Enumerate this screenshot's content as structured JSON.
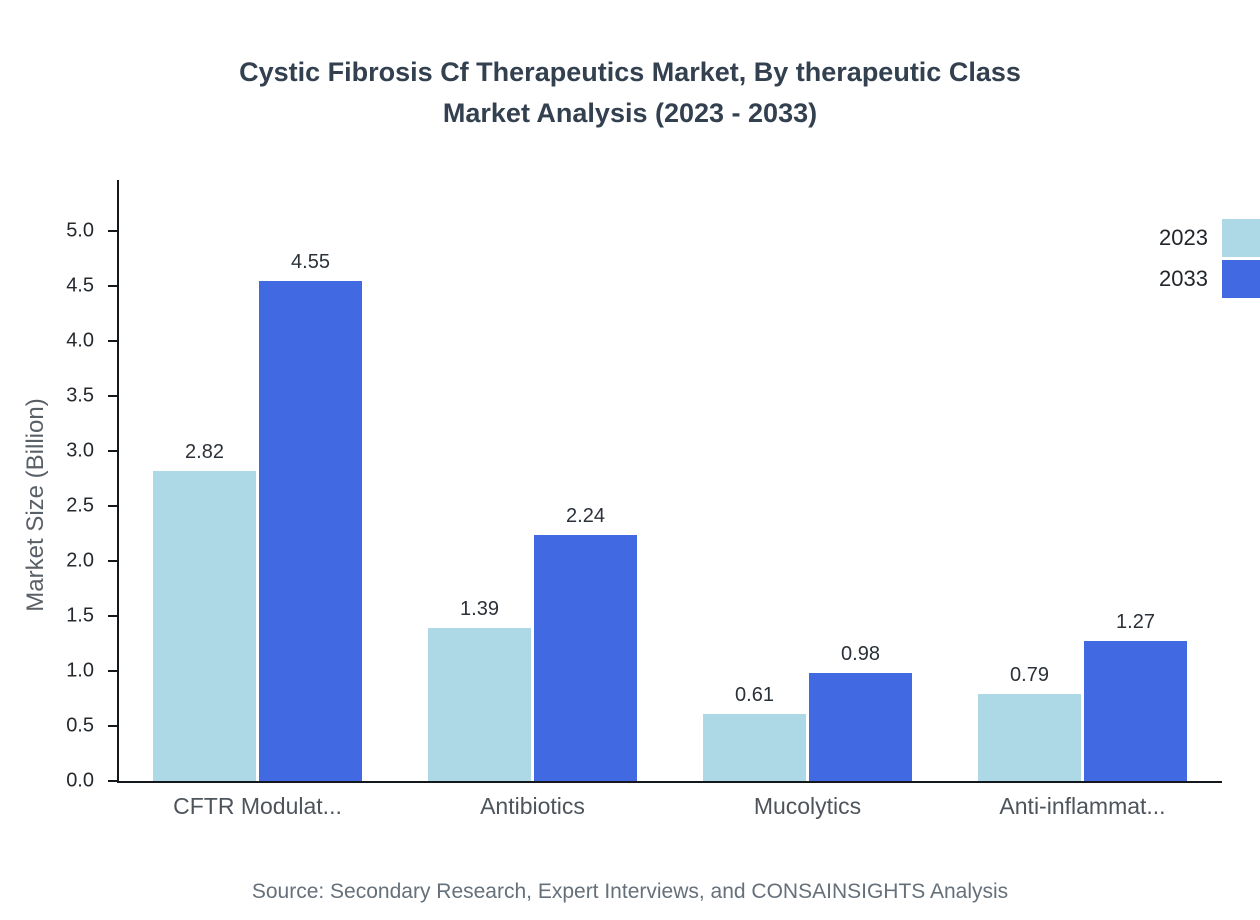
{
  "title": {
    "line1": "Cystic Fibrosis Cf Therapeutics Market, By therapeutic Class",
    "line2": "Market Analysis (2023 - 2033)"
  },
  "source": "Source: Secondary Research, Expert Interviews, and CONSAINSIGHTS Analysis",
  "chart_data": {
    "type": "bar",
    "title": "Cystic Fibrosis Cf Therapeutics Market, By therapeutic Class Market Analysis (2023 - 2033)",
    "categories": [
      "CFTR Modulat...",
      "Antibiotics",
      "Mucolytics",
      "Anti-inflammat..."
    ],
    "series": [
      {
        "name": "2023",
        "color": "#add8e6",
        "values": [
          2.82,
          1.39,
          0.61,
          0.79
        ]
      },
      {
        "name": "2033",
        "color": "#4169e1",
        "values": [
          4.55,
          2.24,
          0.98,
          1.27
        ]
      }
    ],
    "xlabel": "",
    "ylabel": "Market Size (Billion)",
    "ylim": [
      0,
      5.0
    ],
    "yticks": [
      0.0,
      0.5,
      1.0,
      1.5,
      2.0,
      2.5,
      3.0,
      3.5,
      4.0,
      4.5,
      5.0
    ],
    "grid": false,
    "legend_position": "top-right",
    "value_labels": true
  }
}
